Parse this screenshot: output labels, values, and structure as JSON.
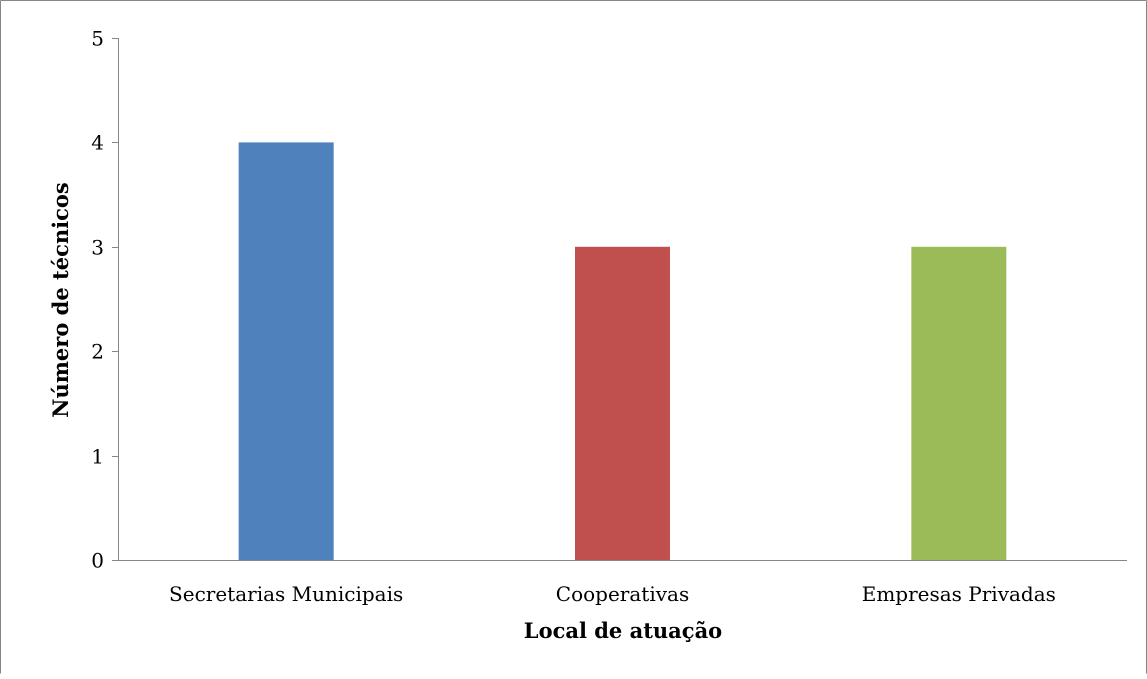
{
  "chart_data": {
    "type": "bar",
    "title": "",
    "xlabel": "Local de atuação",
    "ylabel": "Número de técnicos",
    "categories": [
      "Secretarias Municipais",
      "Cooperativas",
      "Empresas Privadas"
    ],
    "values": [
      4,
      3,
      3
    ],
    "colors": [
      "#4F81BD",
      "#C0504D",
      "#9BBB59"
    ],
    "ylim": [
      0,
      5
    ],
    "yticks": [
      "0",
      "1",
      "2",
      "3",
      "4",
      "5"
    ],
    "grid": false,
    "legend": "none"
  }
}
